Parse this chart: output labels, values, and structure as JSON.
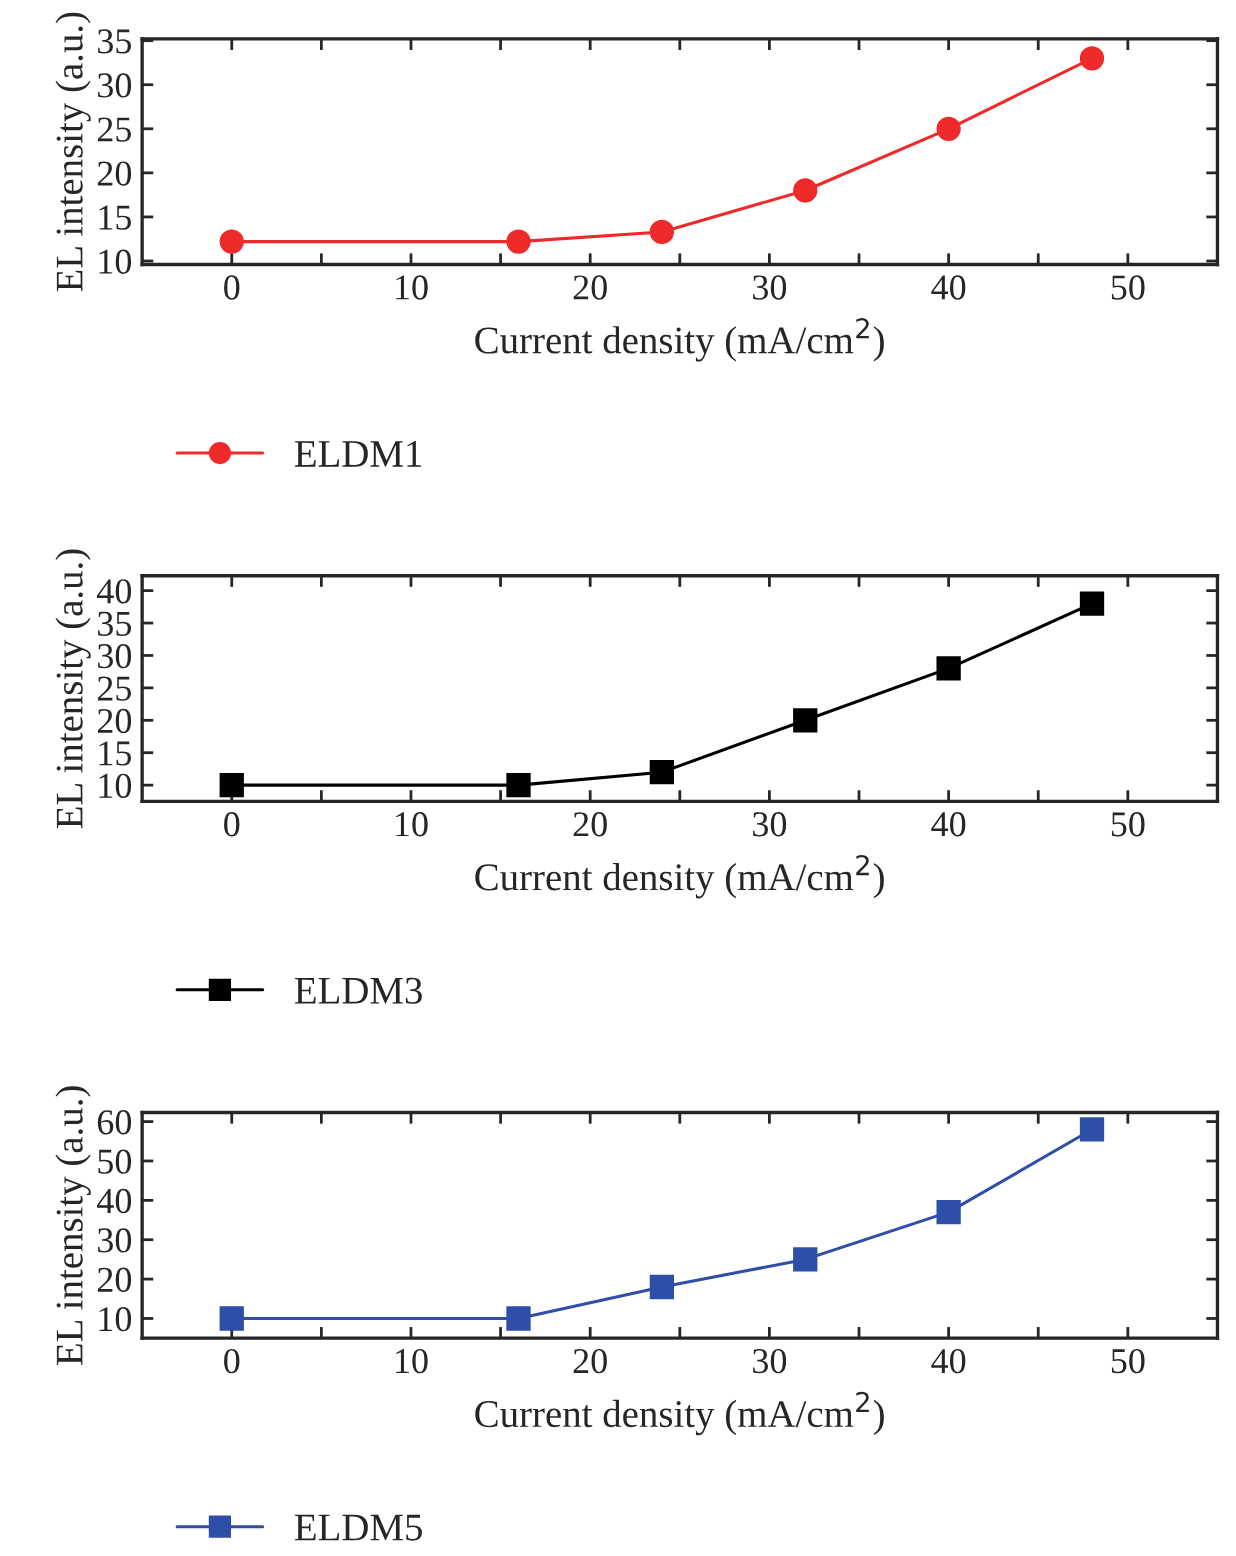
{
  "chart_data": [
    {
      "type": "line",
      "x": [
        0,
        16,
        24,
        32,
        40,
        48
      ],
      "xlabel": "Current density (mA/cm$^{2}$)",
      "ylabel": "EL intensity (a.u.)",
      "xlim": [
        -5,
        55
      ],
      "ylim": [
        9.6,
        35.2
      ],
      "xticks": [
        0,
        {
          "value": 5,
          "label": null
        },
        10,
        {
          "value": 15,
          "label": null
        },
        20,
        {
          "value": 25,
          "label": null
        },
        30,
        {
          "value": 35,
          "label": null
        },
        40,
        {
          "value": 45,
          "label": null
        },
        50
      ],
      "yticks": [
        10,
        15,
        20,
        25,
        30,
        35
      ],
      "marker": "circle",
      "legend": "bottom",
      "grid": false,
      "series": [
        {
          "name": "ELDM1",
          "color": "#ee2a2a",
          "values": [
            12.2,
            12.2,
            13.3,
            18,
            25,
            33
          ]
        }
      ]
    },
    {
      "type": "line",
      "x": [
        0,
        16,
        24,
        32,
        40,
        48
      ],
      "xlabel": "Current density (mA/cm$^{2}$)",
      "ylabel": "EL intensity (a.u.)",
      "xlim": [
        -5,
        55
      ],
      "ylim": [
        7.5,
        42.3
      ],
      "xticks": [
        0,
        {
          "value": 5,
          "label": null
        },
        10,
        {
          "value": 15,
          "label": null
        },
        20,
        {
          "value": 25,
          "label": null
        },
        30,
        {
          "value": 35,
          "label": null
        },
        40,
        {
          "value": 45,
          "label": null
        },
        50
      ],
      "yticks": [
        10,
        15,
        20,
        25,
        30,
        35,
        40
      ],
      "marker": "square",
      "legend": "bottom",
      "grid": false,
      "series": [
        {
          "name": "ELDM3",
          "color": "#000000",
          "values": [
            10,
            10,
            12,
            20,
            28,
            38
          ]
        }
      ]
    },
    {
      "type": "line",
      "x": [
        0,
        16,
        24,
        32,
        40,
        48
      ],
      "xlabel": "Current density (mA/cm$^{2}$)",
      "ylabel": "EL intensity (a.u.)",
      "xlim": [
        -5,
        55
      ],
      "ylim": [
        5,
        62.3
      ],
      "xticks": [
        0,
        {
          "value": 5,
          "label": null
        },
        10,
        {
          "value": 15,
          "label": null
        },
        20,
        {
          "value": 25,
          "label": null
        },
        30,
        {
          "value": 35,
          "label": null
        },
        40,
        {
          "value": 45,
          "label": null
        },
        50
      ],
      "yticks": [
        10,
        20,
        30,
        40,
        50,
        60
      ],
      "marker": "square",
      "legend": "bottom",
      "grid": false,
      "series": [
        {
          "name": "ELDM5",
          "color": "#2e4fa8",
          "values": [
            10,
            10,
            18,
            25,
            37,
            58
          ]
        }
      ]
    }
  ]
}
